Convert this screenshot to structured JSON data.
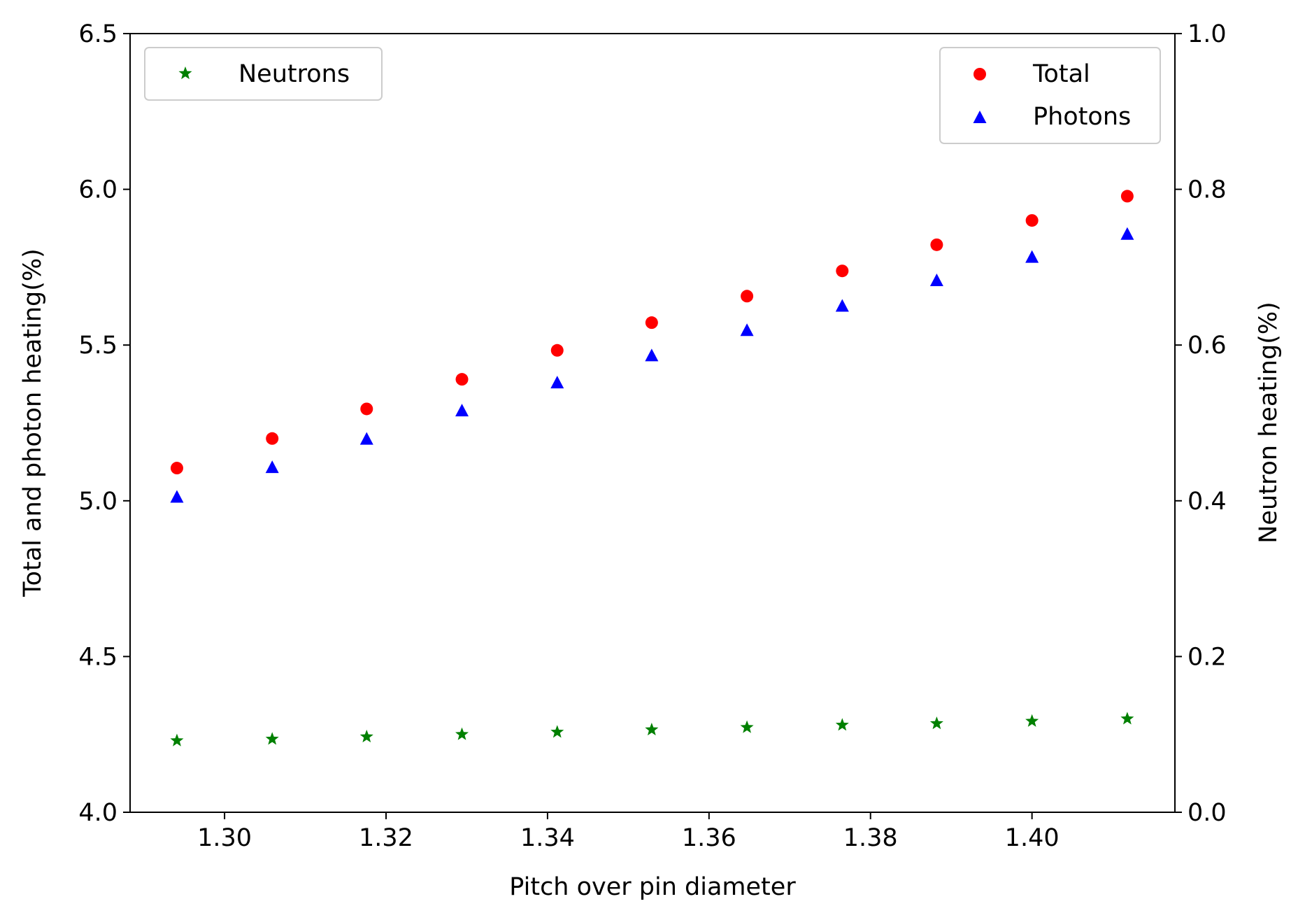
{
  "chart_data": {
    "type": "scatter",
    "xlabel": "Pitch over pin diameter",
    "ylabel_left": "Total and photon heating(%)",
    "ylabel_right": "Neutron heating(%)",
    "xlim": [
      1.2883,
      1.4177
    ],
    "ylim_left": [
      4.0,
      6.5
    ],
    "ylim_right": [
      0.0,
      1.0
    ],
    "x_ticks": [
      "1.30",
      "1.32",
      "1.34",
      "1.36",
      "1.38",
      "1.40"
    ],
    "x_tick_values": [
      1.3,
      1.32,
      1.34,
      1.36,
      1.38,
      1.4
    ],
    "y_left_ticks": [
      "4.0",
      "4.5",
      "5.0",
      "5.5",
      "6.0",
      "6.5"
    ],
    "y_left_tick_values": [
      4.0,
      4.5,
      5.0,
      5.5,
      6.0,
      6.5
    ],
    "y_right_ticks": [
      "0.0",
      "0.2",
      "0.4",
      "0.6",
      "0.8",
      "1.0"
    ],
    "y_right_tick_values": [
      0.0,
      0.2,
      0.4,
      0.6,
      0.8,
      1.0
    ],
    "grid": false,
    "x": [
      1.2941,
      1.3059,
      1.3176,
      1.3294,
      1.3412,
      1.3529,
      1.3647,
      1.3765,
      1.3882,
      1.4,
      1.4118
    ],
    "series": [
      {
        "name": "Total",
        "axis": "left",
        "marker": "circle",
        "color": "#ff0000",
        "values": [
          5.105,
          5.2,
          5.295,
          5.39,
          5.483,
          5.572,
          5.657,
          5.738,
          5.822,
          5.9,
          5.978
        ]
      },
      {
        "name": "Photons",
        "axis": "left",
        "marker": "triangle",
        "color": "#0000ff",
        "values": [
          5.012,
          5.107,
          5.198,
          5.289,
          5.379,
          5.466,
          5.547,
          5.625,
          5.707,
          5.782,
          5.856
        ]
      },
      {
        "name": "Neutrons",
        "axis": "right",
        "marker": "star",
        "color": "#008000",
        "values": [
          0.092,
          0.094,
          0.097,
          0.1,
          0.103,
          0.106,
          0.109,
          0.112,
          0.114,
          0.117,
          0.12
        ]
      }
    ],
    "legends": [
      {
        "placement": "upper-left",
        "entries": [
          "Neutrons"
        ]
      },
      {
        "placement": "upper-right",
        "entries": [
          "Total",
          "Photons"
        ]
      }
    ]
  }
}
